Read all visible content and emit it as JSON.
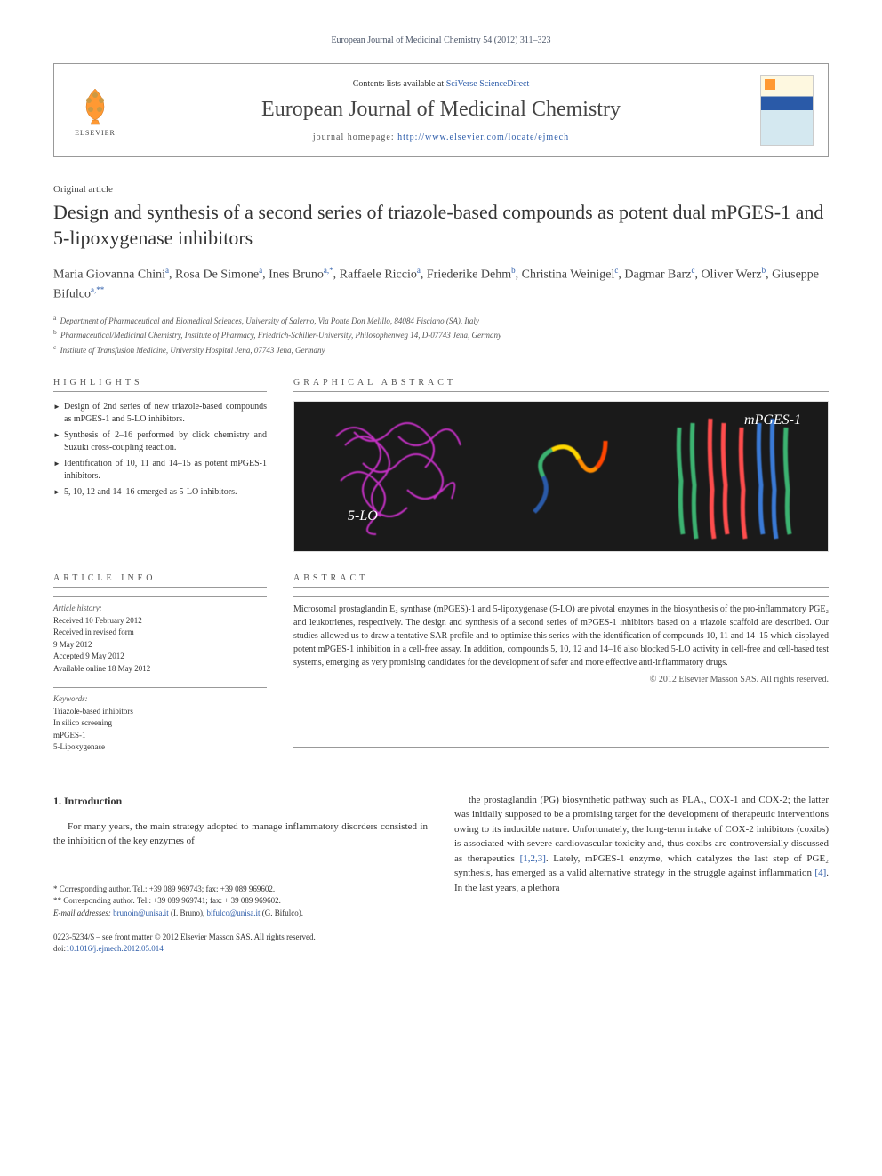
{
  "citation": "European Journal of Medicinal Chemistry 54 (2012) 311–323",
  "header": {
    "publisher": "ELSEVIER",
    "contents_prefix": "Contents lists available at ",
    "contents_link": "SciVerse ScienceDirect",
    "journal_name": "European Journal of Medicinal Chemistry",
    "homepage_prefix": "journal homepage: ",
    "homepage_url": "http://www.elsevier.com/locate/ejmech"
  },
  "article_type": "Original article",
  "title": "Design and synthesis of a second series of triazole-based compounds as potent dual mPGES-1 and 5-lipoxygenase inhibitors",
  "authors_html": "Maria Giovanna Chini<sup class='sup-link'>a</sup>, Rosa De Simone<sup class='sup-link'>a</sup>, Ines Bruno<sup class='sup-link'>a,*</sup>, Raffaele Riccio<sup class='sup-link'>a</sup>, Friederike Dehm<sup class='sup-link'>b</sup>, Christina Weinigel<sup class='sup-link'>c</sup>, Dagmar Barz<sup class='sup-link'>c</sup>, Oliver Werz<sup class='sup-link'>b</sup>, Giuseppe Bifulco<sup class='sup-link'>a,**</sup>",
  "affiliations": [
    {
      "sup": "a",
      "text": "Department of Pharmaceutical and Biomedical Sciences, University of Salerno, Via Ponte Don Melillo, 84084 Fisciano (SA), Italy"
    },
    {
      "sup": "b",
      "text": "Pharmaceutical/Medicinal Chemistry, Institute of Pharmacy, Friedrich-Schiller-University, Philosophenweg 14, D-07743 Jena, Germany"
    },
    {
      "sup": "c",
      "text": "Institute of Transfusion Medicine, University Hospital Jena, 07743 Jena, Germany"
    }
  ],
  "highlights": {
    "label": "HIGHLIGHTS",
    "items": [
      "Design of 2nd series of new triazole-based compounds as mPGES-1 and 5-LO inhibitors.",
      "Synthesis of 2–16 performed by click chemistry and Suzuki cross-coupling reaction.",
      "Identification of 10, 11 and 14–15 as potent mPGES-1 inhibitors.",
      "5, 10, 12 and 14–16 emerged as 5-LO inhibitors."
    ]
  },
  "graphical": {
    "label": "GRAPHICAL ABSTRACT",
    "label_left": "5-LO",
    "label_right": "mPGES-1",
    "background": "#1a1a1a",
    "colors": {
      "magenta": "#d633d6",
      "rainbow": [
        "#2a5aa8",
        "#3cb371",
        "#ffd700",
        "#ff8c00",
        "#ff4500"
      ],
      "helix_green": "#3cb371",
      "helix_red": "#ff4d4d",
      "helix_blue": "#3a7ad6"
    }
  },
  "article_info": {
    "label": "ARTICLE INFO",
    "history_heading": "Article history:",
    "history": [
      "Received 10 February 2012",
      "Received in revised form",
      "9 May 2012",
      "Accepted 9 May 2012",
      "Available online 18 May 2012"
    ],
    "keywords_heading": "Keywords:",
    "keywords": [
      "Triazole-based inhibitors",
      "In silico screening",
      "mPGES-1",
      "5-Lipoxygenase"
    ]
  },
  "abstract": {
    "label": "ABSTRACT",
    "text": "Microsomal prostaglandin E₂ synthase (mPGES)-1 and 5-lipoxygenase (5-LO) are pivotal enzymes in the biosynthesis of the pro-inflammatory PGE₂ and leukotrienes, respectively. The design and synthesis of a second series of mPGES-1 inhibitors based on a triazole scaffold are described. Our studies allowed us to draw a tentative SAR profile and to optimize this series with the identification of compounds 10, 11 and 14–15 which displayed potent mPGES-1 inhibition in a cell-free assay. In addition, compounds 5, 10, 12 and 14–16 also blocked 5-LO activity in cell-free and cell-based test systems, emerging as very promising candidates for the development of safer and more effective anti-inflammatory drugs.",
    "copyright": "© 2012 Elsevier Masson SAS. All rights reserved."
  },
  "intro": {
    "heading": "1. Introduction",
    "p1": "For many years, the main strategy adopted to manage inflammatory disorders consisted in the inhibition of the key enzymes of",
    "p2_pre": "the prostaglandin (PG) biosynthetic pathway such as PLA₂, COX-1 and COX-2; the latter was initially supposed to be a promising target for the development of therapeutic interventions owing to its inducible nature. Unfortunately, the long-term intake of COX-2 inhibitors (coxibs) is associated with severe cardiovascular toxicity and, thus coxibs are controversially discussed as therapeutics ",
    "ref1": "[1,2,3]",
    "p2_mid": ". Lately, mPGES-1 enzyme, which catalyzes the last step of PGE₂ synthesis, has emerged as a valid alternative strategy in the struggle against inflammation ",
    "ref2": "[4]",
    "p2_post": ". In the last years, a plethora"
  },
  "correspondence": {
    "star1": "* Corresponding author. Tel.: +39 089 969743; fax: +39 089 969602.",
    "star2": "** Corresponding author. Tel.: +39 089 969741; fax: + 39 089 969602.",
    "email_label": "E-mail addresses: ",
    "email1": "brunoin@unisa.it",
    "email1_name": " (I. Bruno), ",
    "email2": "bifulco@unisa.it",
    "email2_name": " (G. Bifulco)."
  },
  "footer": {
    "line1": "0223-5234/$ – see front matter © 2012 Elsevier Masson SAS. All rights reserved.",
    "doi_prefix": "doi:",
    "doi": "10.1016/j.ejmech.2012.05.014"
  }
}
